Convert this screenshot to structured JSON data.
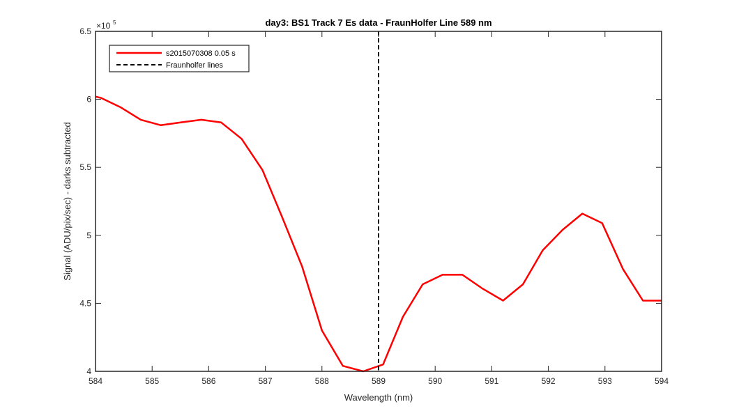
{
  "chart_data": {
    "type": "line",
    "title": "day3: BS1  Track 7 Es data - FraunHolfer Line 589 nm",
    "xlabel": "Wavelength (nm)",
    "ylabel": "Signal (ADU/pix/sec) - darks subtracted",
    "y_exponent_label": "×10",
    "y_exponent_power": "5",
    "xlim": [
      584,
      594
    ],
    "ylim": [
      4,
      6.5
    ],
    "x_ticks": [
      584,
      585,
      586,
      587,
      588,
      589,
      590,
      591,
      592,
      593,
      594
    ],
    "y_ticks": [
      4,
      4.5,
      5,
      5.5,
      6,
      6.5
    ],
    "x_tick_labels": [
      "584",
      "585",
      "586",
      "587",
      "588",
      "589",
      "590",
      "591",
      "592",
      "593",
      "594"
    ],
    "y_tick_labels": [
      "4",
      "4.5",
      "5",
      "5.5",
      "6",
      "6.5"
    ],
    "grid": false,
    "legend_position": "top-left",
    "series": [
      {
        "name": "s2015070308 0.05 s",
        "color": "#ff0000",
        "style": "solid",
        "x": [
          584.0,
          584.1,
          584.45,
          584.8,
          585.15,
          585.5,
          585.87,
          586.22,
          586.58,
          586.95,
          587.3,
          587.65,
          588.0,
          588.37,
          588.73,
          589.08,
          589.43,
          589.78,
          590.13,
          590.48,
          590.83,
          591.2,
          591.55,
          591.9,
          592.25,
          592.6,
          592.95,
          593.32,
          593.67,
          594.0
        ],
        "y": [
          6.02,
          6.01,
          5.94,
          5.85,
          5.81,
          5.83,
          5.85,
          5.83,
          5.71,
          5.48,
          5.13,
          4.77,
          4.3,
          4.04,
          4.0,
          4.05,
          4.4,
          4.64,
          4.71,
          4.71,
          4.61,
          4.52,
          4.64,
          4.89,
          5.04,
          5.16,
          5.09,
          4.75,
          4.52,
          4.52
        ]
      }
    ],
    "vlines": [
      {
        "name": "Fraunholfer lines",
        "x": 589,
        "color": "#000000",
        "style": "dashed"
      }
    ]
  }
}
